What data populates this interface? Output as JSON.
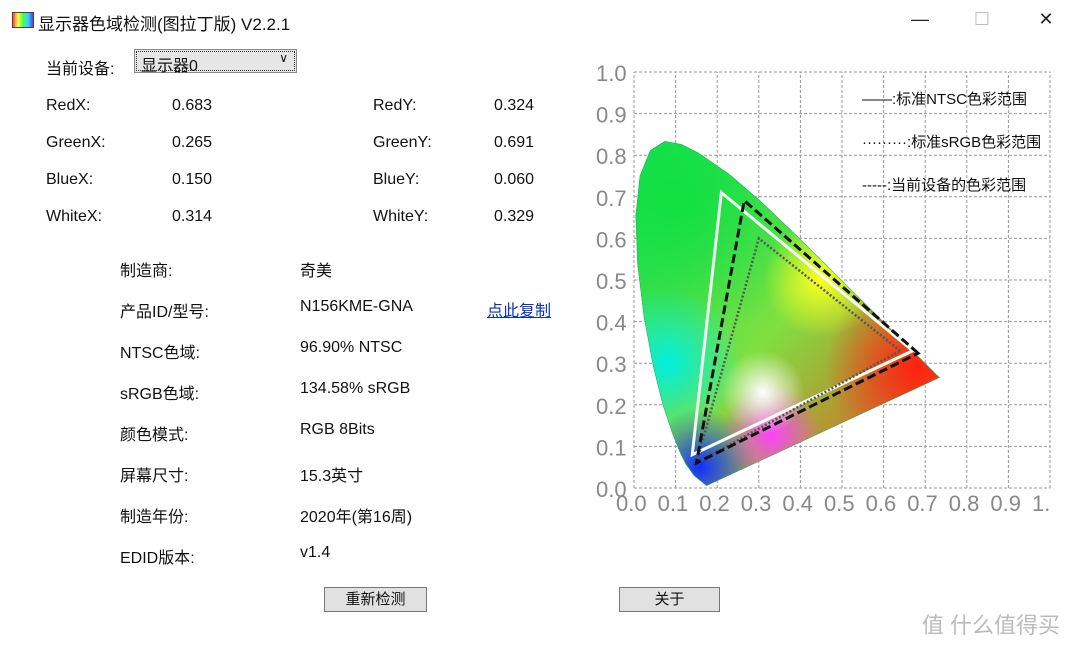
{
  "window": {
    "title": "显示器色域检测(图拉丁版) V2.2.1",
    "minimize": "—",
    "maximize": "☐",
    "close": "✕"
  },
  "device": {
    "label": "当前设备:",
    "value": "显示器0"
  },
  "coords": [
    {
      "lx": "RedX:",
      "vx": "0.683",
      "ly": "RedY:",
      "vy": "0.324"
    },
    {
      "lx": "GreenX:",
      "vx": "0.265",
      "ly": "GreenY:",
      "vy": "0.691"
    },
    {
      "lx": "BlueX:",
      "vx": "0.150",
      "ly": "BlueY:",
      "vy": "0.060"
    },
    {
      "lx": "WhiteX:",
      "vx": "0.314",
      "ly": "WhiteY:",
      "vy": "0.329"
    }
  ],
  "info": [
    {
      "k": "制造商:",
      "v": "奇美"
    },
    {
      "k": "产品ID/型号:",
      "v": "N156KME-GNA"
    },
    {
      "k": "NTSC色域:",
      "v": "96.90% NTSC"
    },
    {
      "k": "sRGB色域:",
      "v": "134.58% sRGB"
    },
    {
      "k": "颜色模式:",
      "v": "RGB 8Bits"
    },
    {
      "k": "屏幕尺寸:",
      "v": "15.3英寸"
    },
    {
      "k": "制造年份:",
      "v": "2020年(第16周)"
    },
    {
      "k": "EDID版本:",
      "v": "v1.4"
    }
  ],
  "copy_link": "点此复制",
  "buttons": {
    "redetect": "重新检测",
    "about": "关于"
  },
  "watermark": "值 什么值得买",
  "chart_data": {
    "type": "scatter",
    "xlim": [
      0,
      1
    ],
    "ylim": [
      0,
      1
    ],
    "grid": true,
    "legend_placement": "top-right",
    "xticks": [
      "0.0",
      "0.1",
      "0.2",
      "0.3",
      "0.4",
      "0.5",
      "0.6",
      "0.7",
      "0.8",
      "0.9",
      "1."
    ],
    "yticks": [
      "0.0",
      "0.1",
      "0.2",
      "0.3",
      "0.4",
      "0.5",
      "0.6",
      "0.7",
      "0.8",
      "0.9",
      "1.0"
    ],
    "legend": [
      "——:标准NTSC色彩范围",
      "·········:标准sRGB色彩范围",
      "-----:当前设备的色彩范围"
    ],
    "ntsc": [
      [
        0.67,
        0.33
      ],
      [
        0.21,
        0.71
      ],
      [
        0.14,
        0.08
      ]
    ],
    "srgb": [
      [
        0.64,
        0.33
      ],
      [
        0.3,
        0.6
      ],
      [
        0.15,
        0.06
      ]
    ],
    "device": [
      [
        0.683,
        0.324
      ],
      [
        0.265,
        0.691
      ],
      [
        0.15,
        0.06
      ]
    ]
  }
}
